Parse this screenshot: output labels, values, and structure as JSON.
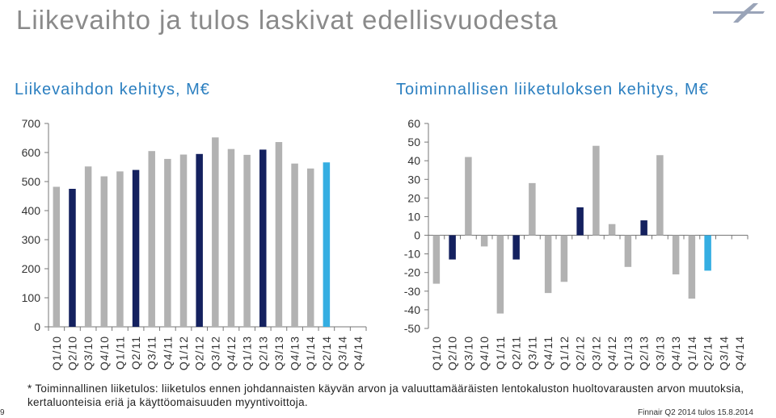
{
  "slide": {
    "title": "Liikevaihto ja tulos laskivat edellisvuodesta",
    "footnote": "* Toiminnallinen liiketulos: liiketulos ennen johdannaisten käyvän arvon ja valuuttamääräisten lentokaluston huoltovarausten arvon muutoksia, kertaluonteisia eriä ja käyttöomaisuuden myyntivoittoja.",
    "page_number": "9",
    "footer": "Finnair Q2 2014 tulos 15.8.2014"
  },
  "colors": {
    "grey_bar": "#b2b2b2",
    "highlight_bar": "#14215f",
    "current_bar": "#35aee2",
    "title": "#8a8a8a",
    "chart_title": "#2b7fc0"
  },
  "chart_data": [
    {
      "type": "bar",
      "title": "Liikevaihdon kehitys, M€",
      "categories": [
        "Q1/10",
        "Q2/10",
        "Q3/10",
        "Q4/10",
        "Q1/11",
        "Q2/11",
        "Q3/11",
        "Q4/11",
        "Q1/12",
        "Q2/12",
        "Q3/12",
        "Q4/12",
        "Q1/13",
        "Q2/13",
        "Q3/13",
        "Q4/13",
        "Q1/14",
        "Q2/14",
        "Q3/14",
        "Q4/14"
      ],
      "values": [
        482,
        475,
        552,
        518,
        535,
        540,
        605,
        578,
        593,
        595,
        652,
        612,
        592,
        610,
        636,
        562,
        545,
        566,
        null,
        null
      ],
      "bar_colors": [
        "grey",
        "highlight",
        "grey",
        "grey",
        "grey",
        "highlight",
        "grey",
        "grey",
        "grey",
        "highlight",
        "grey",
        "grey",
        "grey",
        "highlight",
        "grey",
        "grey",
        "grey",
        "current",
        "grey",
        "grey"
      ],
      "yticks": [
        "0",
        "100",
        "200",
        "300",
        "400",
        "500",
        "600",
        "700"
      ],
      "ylim": [
        0,
        700
      ],
      "grid": false
    },
    {
      "type": "bar",
      "title": "Toiminnallisen liiketuloksen kehitys, M€",
      "categories": [
        "Q1/10",
        "Q2/10",
        "Q3/10",
        "Q4/10",
        "Q1/11",
        "Q2/11",
        "Q3/11",
        "Q4/11",
        "Q1/12",
        "Q2/12",
        "Q3/12",
        "Q4/12",
        "Q1/13",
        "Q2/13",
        "Q3/13",
        "Q4/13",
        "Q1/14",
        "Q2/14",
        "Q3/14",
        "Q4/14"
      ],
      "values": [
        -26,
        -13,
        42,
        -6,
        -42,
        -13,
        28,
        -31,
        -25,
        15,
        48,
        6,
        -17,
        8,
        43,
        -21,
        -34,
        -19,
        null,
        null
      ],
      "bar_colors": [
        "grey",
        "highlight",
        "grey",
        "grey",
        "grey",
        "highlight",
        "grey",
        "grey",
        "grey",
        "highlight",
        "grey",
        "grey",
        "grey",
        "highlight",
        "grey",
        "grey",
        "grey",
        "current",
        "grey",
        "grey"
      ],
      "yticks": [
        "-50",
        "-40",
        "-30",
        "-20",
        "-10",
        "0",
        "10",
        "20",
        "30",
        "40",
        "50",
        "60"
      ],
      "ylim": [
        -50,
        60
      ],
      "grid": false
    }
  ]
}
